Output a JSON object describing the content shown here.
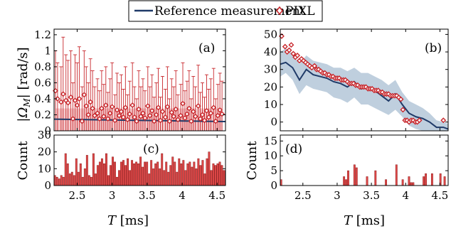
{
  "legend": {
    "reference_label": "Reference measurement",
    "pixl_label": "PIXL"
  },
  "colors": {
    "reference": "#1f3a68",
    "pixl": "#c8282d",
    "pixl_fill": "#f3c4c6",
    "band": "#a9bfd3",
    "bar": "#e04848"
  },
  "chart_data": [
    {
      "panel": "a",
      "type": "scatter",
      "label": "(a)",
      "xlabel_var": "T",
      "xlabel_unit": "[ms]",
      "ylabel_var": "|Ω",
      "ylabel_sub": "M",
      "ylabel_rest": "| [rad/s]",
      "xlim": [
        2.17,
        4.62
      ],
      "ylim": [
        0,
        1.27
      ],
      "yticks": [
        0,
        0.2,
        0.4,
        0.6,
        0.8,
        1,
        1.2
      ],
      "yticklabels": [
        "0",
        "0.2",
        "0.4",
        "0.6",
        "0.8",
        "1",
        "1.2"
      ],
      "reference": {
        "x": [
          2.17,
          4.62
        ],
        "y": [
          0.145,
          0.115
        ],
        "band_lo": [
          0.09,
          0.06
        ],
        "band_hi": [
          0.25,
          0.21
        ]
      },
      "pixl": {
        "x": [
          2.19,
          2.22,
          2.27,
          2.3,
          2.34,
          2.37,
          2.41,
          2.44,
          2.47,
          2.5,
          2.53,
          2.57,
          2.6,
          2.63,
          2.66,
          2.69,
          2.72,
          2.75,
          2.79,
          2.82,
          2.85,
          2.88,
          2.91,
          2.94,
          2.97,
          3.0,
          3.04,
          3.07,
          3.1,
          3.13,
          3.16,
          3.19,
          3.22,
          3.25,
          3.29,
          3.32,
          3.35,
          3.38,
          3.41,
          3.44,
          3.47,
          3.51,
          3.54,
          3.57,
          3.6,
          3.63,
          3.66,
          3.69,
          3.72,
          3.76,
          3.79,
          3.82,
          3.85,
          3.88,
          3.91,
          3.94,
          3.98,
          4.01,
          4.04,
          4.07,
          4.1,
          4.13,
          4.16,
          4.19,
          4.23,
          4.26,
          4.29,
          4.32,
          4.35,
          4.38,
          4.41,
          4.45,
          4.48,
          4.51,
          4.54,
          4.57
        ],
        "y": [
          0.5,
          0.4,
          0.36,
          0.46,
          0.38,
          0.35,
          0.42,
          0.15,
          0.38,
          0.32,
          0.4,
          0.12,
          0.45,
          0.31,
          0.2,
          0.36,
          0.28,
          0.19,
          0.22,
          0.15,
          0.28,
          0.18,
          0.32,
          0.15,
          0.22,
          0.3,
          0.13,
          0.26,
          0.19,
          0.24,
          0.17,
          0.29,
          0.14,
          0.21,
          0.32,
          0.17,
          0.12,
          0.27,
          0.18,
          0.22,
          0.16,
          0.31,
          0.19,
          0.25,
          0.12,
          0.2,
          0.29,
          0.13,
          0.24,
          0.17,
          0.3,
          0.12,
          0.23,
          0.18,
          0.27,
          0.14,
          0.19,
          0.34,
          0.16,
          0.21,
          0.28,
          0.12,
          0.24,
          0.18,
          0.31,
          0.15,
          0.2,
          0.13,
          0.25,
          0.17,
          0.22,
          0.29,
          0.12,
          0.19,
          0.26,
          0.21
        ],
        "upper": [
          1.0,
          0.85,
          0.8,
          1.17,
          0.95,
          0.88,
          1.0,
          0.6,
          0.95,
          0.85,
          1.05,
          0.55,
          1.0,
          0.8,
          0.6,
          0.9,
          0.75,
          0.55,
          0.65,
          0.5,
          0.75,
          0.58,
          0.8,
          0.48,
          0.65,
          0.85,
          0.45,
          0.72,
          0.6,
          0.7,
          0.52,
          0.8,
          0.45,
          0.62,
          0.85,
          0.55,
          0.4,
          0.75,
          0.55,
          0.65,
          0.5,
          0.8,
          0.55,
          0.7,
          0.42,
          0.6,
          0.78,
          0.42,
          0.68,
          0.52,
          0.8,
          0.4,
          0.65,
          0.55,
          0.75,
          0.45,
          0.58,
          0.85,
          0.5,
          0.62,
          0.75,
          0.4,
          0.68,
          0.55,
          0.82,
          0.48,
          0.6,
          0.42,
          0.7,
          0.52,
          0.65,
          0.78,
          0.4,
          0.58,
          0.72,
          0.62
        ]
      }
    },
    {
      "panel": "b",
      "type": "scatter",
      "label": "(b)",
      "xlabel_var": "T",
      "xlabel_unit": "[ms]",
      "xlim": [
        2.17,
        4.62
      ],
      "ylim": [
        -5,
        53
      ],
      "yticks": [
        0,
        10,
        20,
        30,
        40,
        50
      ],
      "yticklabels": [
        "0",
        "10",
        "20",
        "30",
        "40",
        "50"
      ],
      "reference": {
        "x": [
          2.17,
          2.25,
          2.35,
          2.45,
          2.55,
          2.65,
          2.75,
          2.85,
          2.95,
          3.05,
          3.15,
          3.25,
          3.35,
          3.45,
          3.55,
          3.65,
          3.75,
          3.85,
          3.95,
          4.05,
          4.15,
          4.25,
          4.35,
          4.45,
          4.55,
          4.62
        ],
        "y": [
          33,
          34,
          31,
          24,
          30,
          27,
          26,
          25,
          23,
          22,
          20,
          23,
          19,
          20,
          18,
          15,
          12,
          16,
          10,
          5,
          3,
          2,
          0,
          -3,
          -3,
          -4
        ],
        "band_lo": [
          26,
          28,
          24,
          16,
          21,
          19,
          18,
          17,
          14,
          13,
          11,
          14,
          10,
          10,
          8,
          6,
          4,
          7,
          3,
          -2,
          -4,
          -5,
          -5,
          -5,
          -5,
          -5
        ],
        "band_hi": [
          40,
          42,
          39,
          33,
          38,
          35,
          34,
          33,
          31,
          31,
          29,
          31,
          28,
          28,
          26,
          24,
          21,
          24,
          17,
          12,
          10,
          8,
          5,
          1,
          0,
          -1
        ]
      },
      "pixl": {
        "x": [
          2.19,
          2.24,
          2.27,
          2.3,
          2.33,
          2.36,
          2.39,
          2.42,
          2.45,
          2.48,
          2.51,
          2.54,
          2.57,
          2.6,
          2.63,
          2.67,
          2.7,
          2.73,
          2.76,
          2.79,
          2.82,
          2.85,
          2.88,
          2.91,
          2.94,
          2.97,
          3.0,
          3.03,
          3.06,
          3.09,
          3.12,
          3.15,
          3.18,
          3.21,
          3.24,
          3.27,
          3.3,
          3.33,
          3.36,
          3.39,
          3.42,
          3.45,
          3.48,
          3.51,
          3.54,
          3.57,
          3.6,
          3.63,
          3.66,
          3.69,
          3.72,
          3.75,
          3.78,
          3.81,
          3.84,
          3.87,
          3.9,
          3.93,
          3.96,
          3.99,
          4.02,
          4.05,
          4.08,
          4.11,
          4.14,
          4.17,
          4.2,
          4.55
        ],
        "y": [
          49,
          43,
          40,
          41,
          44,
          39,
          37,
          38,
          35,
          36,
          35,
          34,
          33,
          32,
          31,
          32,
          30,
          30,
          29,
          28,
          28,
          27,
          27,
          26,
          26,
          25,
          25,
          25,
          24,
          24,
          24,
          23,
          22,
          22,
          22,
          21,
          21,
          20,
          20,
          20,
          20,
          19,
          19,
          19,
          18,
          18,
          18,
          17,
          17,
          16,
          16,
          16,
          15,
          15,
          15,
          15,
          14,
          13,
          7,
          1,
          1,
          0,
          1,
          1,
          0,
          0,
          1,
          1
        ]
      }
    },
    {
      "panel": "c",
      "type": "bar",
      "label": "(c)",
      "ylabel": "Count",
      "xlim": [
        2.17,
        4.62
      ],
      "ylim": [
        0,
        30
      ],
      "yticks": [
        0,
        10,
        20,
        30
      ],
      "yticklabels": [
        "0",
        "10",
        "20",
        "30"
      ],
      "xticks": [
        2.5,
        3,
        3.5,
        4,
        4.5
      ],
      "xticklabels": [
        "2.5",
        "3",
        "3.5",
        "4",
        "4.5"
      ],
      "bin_start": 2.17,
      "bin_width": 0.0306,
      "values": [
        6,
        5,
        4,
        6,
        5,
        19,
        13,
        7,
        8,
        6,
        16,
        8,
        13,
        5,
        10,
        18,
        6,
        5,
        19,
        7,
        12,
        14,
        16,
        13,
        19,
        6,
        12,
        17,
        14,
        5,
        9,
        14,
        15,
        12,
        16,
        9,
        15,
        13,
        14,
        13,
        17,
        11,
        14,
        14,
        7,
        15,
        10,
        13,
        14,
        10,
        19,
        9,
        14,
        8,
        12,
        17,
        14,
        8,
        16,
        13,
        15,
        9,
        13,
        14,
        11,
        14,
        10,
        16,
        12,
        15,
        7,
        16,
        20,
        9,
        13,
        12,
        13,
        14,
        12,
        9
      ]
    },
    {
      "panel": "d",
      "type": "bar",
      "label": "(d)",
      "ylabel": "Count",
      "xlim": [
        2.17,
        4.62
      ],
      "ylim": [
        0,
        17
      ],
      "yticks": [
        0,
        5,
        10,
        15
      ],
      "yticklabels": [
        "0",
        "5",
        "10",
        "15"
      ],
      "xticks": [
        2.5,
        3,
        3.5,
        4,
        4.5
      ],
      "xticklabels": [
        "2.5",
        "3",
        "3.5",
        "4",
        "4.5"
      ],
      "bin_start": 2.17,
      "bin_width": 0.0306,
      "values": [
        2,
        0,
        0,
        0,
        0,
        0,
        0,
        0,
        0,
        0,
        0,
        0,
        0,
        0,
        0,
        0,
        0,
        0,
        0,
        0,
        0,
        0,
        0,
        0,
        0,
        0,
        0,
        0,
        0,
        0,
        3,
        2,
        5,
        0,
        0,
        7,
        6,
        0,
        0,
        0,
        0,
        3,
        0,
        0,
        0,
        5,
        0,
        0,
        0,
        0,
        2,
        0,
        0,
        0,
        0,
        7,
        0,
        0,
        2,
        0,
        0,
        3,
        1,
        1,
        0,
        0,
        0,
        0,
        3,
        4,
        0,
        0,
        4,
        0,
        0,
        0,
        4,
        0,
        3,
        0
      ]
    }
  ]
}
